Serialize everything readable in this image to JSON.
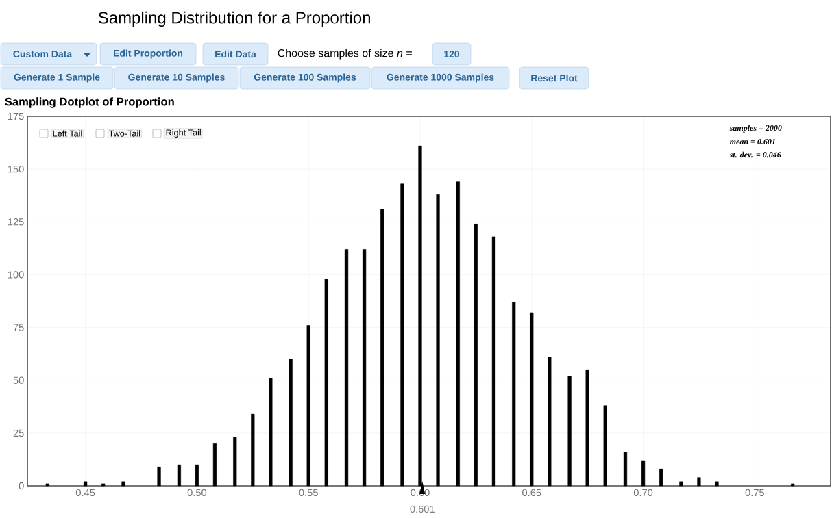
{
  "chart_data": {
    "type": "bar",
    "title": "Sampling Distribution for a Proportion",
    "subtitle": "Sampling Dotplot of Proportion",
    "x": [
      0.433,
      0.45,
      0.458,
      0.467,
      0.483,
      0.492,
      0.5,
      0.508,
      0.517,
      0.525,
      0.533,
      0.542,
      0.55,
      0.558,
      0.567,
      0.575,
      0.583,
      0.592,
      0.6,
      0.608,
      0.617,
      0.625,
      0.633,
      0.642,
      0.65,
      0.658,
      0.667,
      0.675,
      0.683,
      0.692,
      0.7,
      0.708,
      0.717,
      0.725,
      0.733,
      0.767
    ],
    "values": [
      1,
      2,
      1,
      2,
      9,
      10,
      10,
      20,
      23,
      34,
      51,
      60,
      76,
      98,
      112,
      112,
      131,
      143,
      161,
      138,
      144,
      124,
      118,
      87,
      82,
      61,
      52,
      55,
      38,
      16,
      12,
      8,
      2,
      4,
      2,
      1
    ],
    "color": "#000000",
    "xlim": [
      0.424,
      0.784
    ],
    "ylim": [
      0,
      175
    ],
    "xticks": [
      0.45,
      {
        "value": 0.5,
        "label": "0.50"
      },
      0.55,
      {
        "value": 0.6,
        "label": "0.60"
      },
      0.65,
      {
        "value": 0.7,
        "label": "0.70"
      },
      0.75
    ],
    "yticks": [
      0,
      25,
      50,
      75,
      100,
      125,
      150,
      175
    ],
    "grid": true,
    "annotations": [
      "Custom Data",
      "Edit Proportion",
      "Edit Data",
      "Choose samples of size *n* =",
      "120",
      "Generate 1 Sample",
      "Generate 10 Samples",
      "Generate 100 Samples",
      "Generate 1000 Samples",
      "Reset Plot",
      "Left Tail",
      "Two-Tail",
      "Right Tail",
      "samples = 2000",
      "mean = 0.601",
      "st. dev. = 0.046",
      {
        "text": "0.601",
        "x": 0.601,
        "y": 0
      }
    ]
  }
}
